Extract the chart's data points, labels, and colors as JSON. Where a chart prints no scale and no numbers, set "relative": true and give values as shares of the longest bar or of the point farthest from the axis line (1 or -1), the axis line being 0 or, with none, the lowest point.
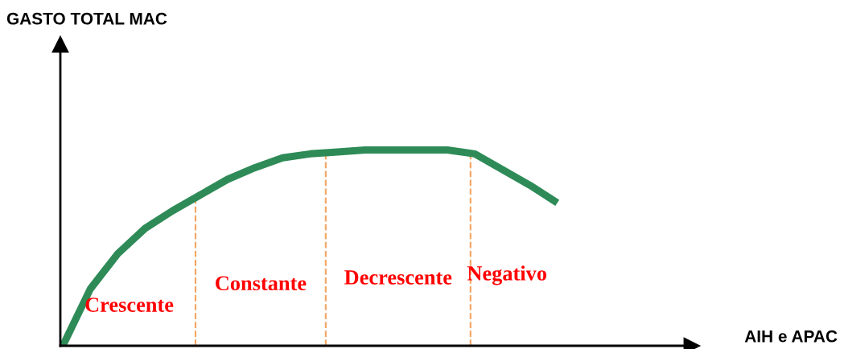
{
  "chart_data": {
    "type": "line",
    "relative": true,
    "categories": [
      null,
      null,
      null,
      null,
      null,
      null,
      null,
      null,
      null,
      null,
      null,
      null,
      null,
      null,
      null,
      null,
      null,
      null,
      null
    ],
    "series": [
      {
        "color": "#2e8b57",
        "values": [
          0,
          0.29,
          0.47,
          0.6,
          0.69,
          0.77,
          0.85,
          0.91,
          0.96,
          0.98,
          0.99,
          1,
          1,
          1,
          1,
          0.98,
          0.9,
          0.82,
          0.73
        ]
      }
    ],
    "annotations": [
      "GASTO TOTAL MAC",
      "AIH e APAC",
      "Crescente",
      "Constante",
      "Decrescente",
      "Negativo"
    ],
    "line_style": "solid",
    "marker": "none"
  }
}
